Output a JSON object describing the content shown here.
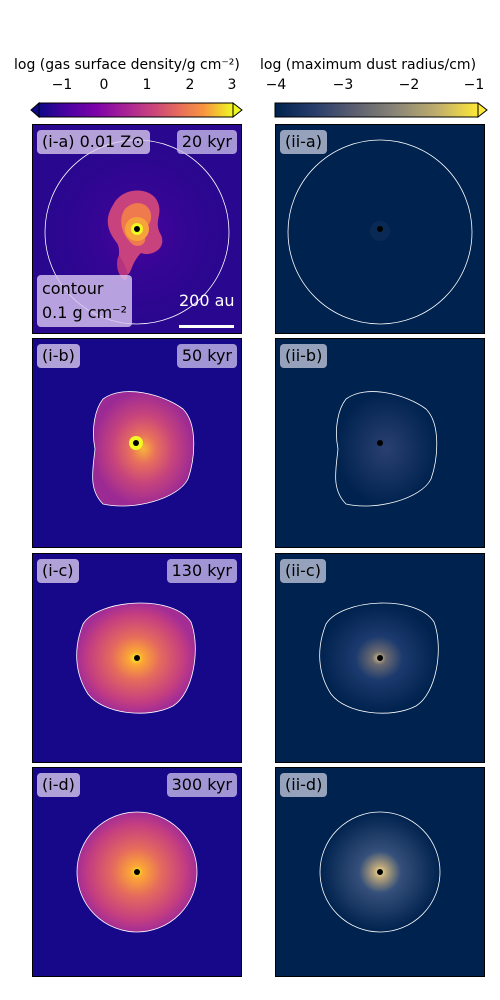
{
  "colorbar_gas": {
    "title": "log (gas surface density/g cm⁻²)",
    "ticks": [
      "−1",
      "0",
      "1",
      "2",
      "3"
    ],
    "colormap": "plasma"
  },
  "colorbar_dust": {
    "title": "log (maximum dust radius/cm)",
    "ticks": [
      "−4",
      "−3",
      "−2",
      "−1"
    ],
    "colormap": "cividis"
  },
  "gas_panels": [
    {
      "label": "(i-a) 0.01 Z⊙",
      "time": "20 kyr"
    },
    {
      "label": "(i-b)",
      "time": "50 kyr"
    },
    {
      "label": "(i-c)",
      "time": "130 kyr"
    },
    {
      "label": "(i-d)",
      "time": "300 kyr"
    }
  ],
  "dust_panels": [
    {
      "label": "(ii-a)"
    },
    {
      "label": "(ii-b)"
    },
    {
      "label": "(ii-c)"
    },
    {
      "label": "(ii-d)"
    }
  ],
  "contour_legend": {
    "line1": "contour",
    "line2": "0.1 g cm⁻²"
  },
  "scale_bar": {
    "label": "200 au"
  },
  "colors": {
    "gas_background": "#0c0786",
    "dust_background": "#00224e",
    "contour": "#ffffff"
  }
}
